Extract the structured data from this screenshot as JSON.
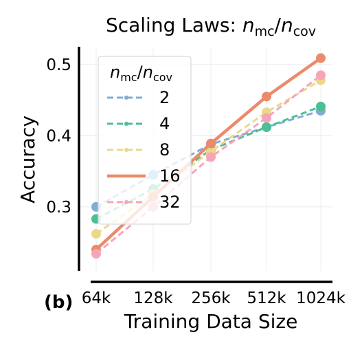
{
  "chart_data": {
    "type": "line",
    "title": "Scaling Laws: n_mc/n_cov",
    "title_parts": {
      "prefix": "Scaling Laws: ",
      "num": "n",
      "num_sub": "mc",
      "slash": "/",
      "den": "n",
      "den_sub": "cov"
    },
    "panel_label": "(b)",
    "xlabel": "Training Data Size",
    "ylabel": "Accuracy",
    "categories": [
      "64k",
      "128k",
      "256k",
      "512k",
      "1024k"
    ],
    "ylim": [
      0.21,
      0.525
    ],
    "yticks": [
      0.3,
      0.4,
      0.5
    ],
    "ytick_labels": [
      "0.3",
      "0.4",
      "0.5"
    ],
    "grid": true,
    "legend": {
      "placement": "upper-left",
      "title_parts": {
        "num": "n",
        "num_sub": "mc",
        "slash": "/",
        "den": "n",
        "den_sub": "cov"
      }
    },
    "series": [
      {
        "name": "2",
        "values": [
          0.3,
          0.345,
          0.388,
          0.412,
          0.435
        ],
        "color": "#7fadd6",
        "dash": true,
        "bold": false
      },
      {
        "name": "4",
        "values": [
          0.283,
          0.325,
          0.38,
          0.412,
          0.441
        ],
        "color": "#4cbf96",
        "dash": true,
        "bold": false
      },
      {
        "name": "8",
        "values": [
          0.262,
          0.318,
          0.378,
          0.433,
          0.478
        ],
        "color": "#ecd88a",
        "dash": true,
        "bold": false
      },
      {
        "name": "16",
        "values": [
          0.24,
          0.314,
          0.389,
          0.455,
          0.509
        ],
        "color": "#ec8a6c",
        "dash": false,
        "bold": true
      },
      {
        "name": "32",
        "values": [
          0.234,
          0.3,
          0.37,
          0.425,
          0.485
        ],
        "color": "#f6a5b9",
        "dash": true,
        "bold": false
      }
    ]
  }
}
